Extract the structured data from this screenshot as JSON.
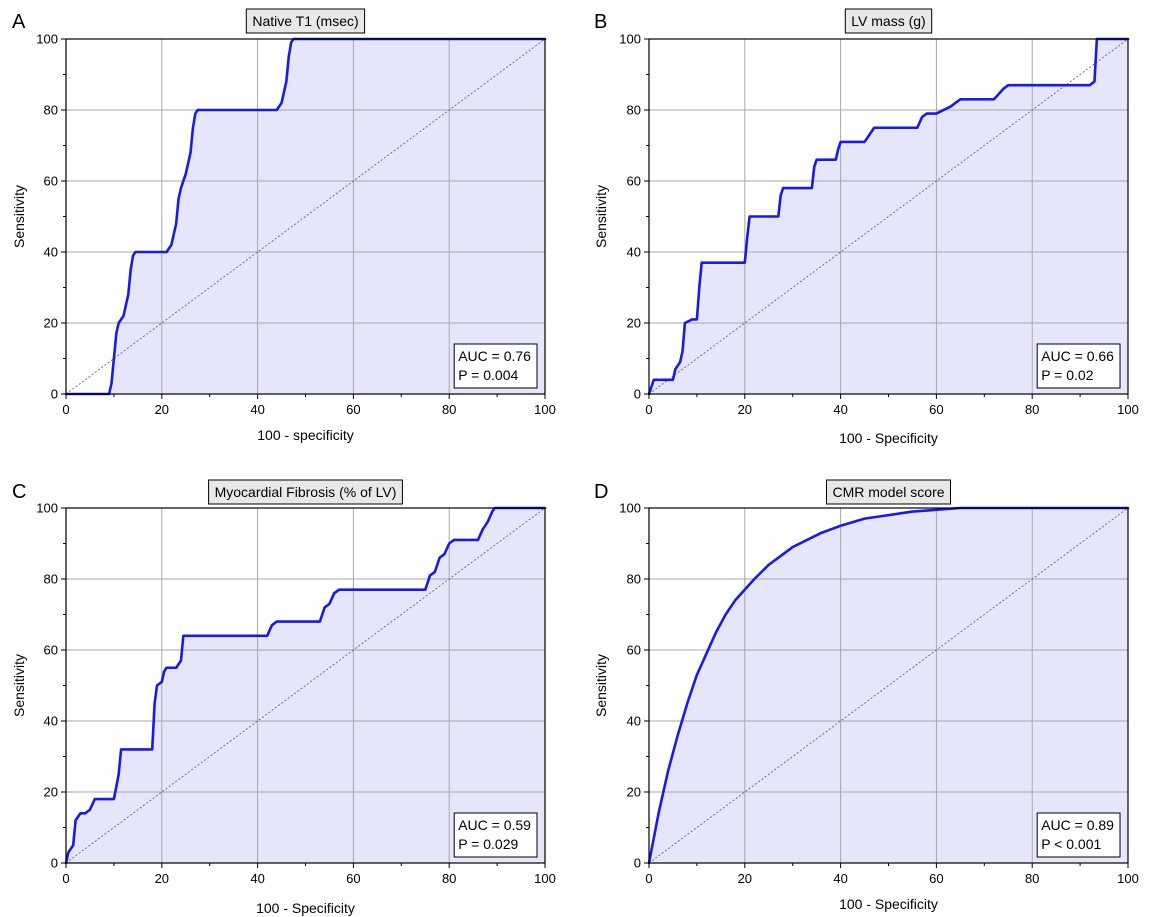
{
  "colors": {
    "curve": "#1a1ae6",
    "fill": "#e6e6fa",
    "grid": "#a8a8a8",
    "title_box": "#e8e8e8",
    "diagonal": "#555555"
  },
  "chart_data": [
    {
      "type": "line",
      "panel_letter": "A",
      "title": "Native T1 (msec)",
      "xlabel": "100 - specificity",
      "ylabel": "Sensitivity",
      "xlim": [
        0,
        100
      ],
      "ylim": [
        0,
        100
      ],
      "x_ticks": [
        "0",
        "20",
        "40",
        "60",
        "80",
        "100"
      ],
      "y_ticks": [
        "0",
        "20",
        "40",
        "60",
        "80",
        "100"
      ],
      "grid": true,
      "diagonal_reference": true,
      "stats_box_position": "bottom-right",
      "stats": [
        "AUC = 0.76",
        "P = 0.004"
      ],
      "x": [
        0,
        9,
        9.5,
        10,
        10.5,
        11,
        12,
        13,
        13.5,
        14,
        14.5,
        15,
        21,
        22,
        23,
        23.5,
        24,
        25,
        26,
        26.5,
        27,
        27.5,
        28,
        44,
        45,
        46,
        46.5,
        47,
        47.5,
        48,
        100
      ],
      "y": [
        0,
        0,
        3,
        10,
        17,
        20,
        22,
        28,
        35,
        39,
        40,
        40,
        40,
        42,
        48,
        55,
        58,
        62,
        68,
        75,
        79,
        80,
        80,
        80,
        82,
        88,
        95,
        99,
        100,
        100,
        100
      ]
    },
    {
      "type": "line",
      "panel_letter": "B",
      "title": "LV mass (g)",
      "xlabel": "100 - Specificity",
      "ylabel": "Sensitivity",
      "xlim": [
        0,
        100
      ],
      "ylim": [
        0,
        100
      ],
      "x_ticks": [
        "0",
        "20",
        "40",
        "60",
        "80",
        "100"
      ],
      "y_ticks": [
        "0",
        "20",
        "40",
        "60",
        "80",
        "100"
      ],
      "grid": true,
      "diagonal_reference": true,
      "stats_box_position": "bottom-right",
      "stats": [
        "AUC = 0.66",
        "P = 0.02"
      ],
      "x": [
        0,
        0.5,
        1,
        2,
        4,
        5,
        5.5,
        6,
        6.5,
        7,
        7.5,
        9,
        10,
        10.5,
        11,
        20,
        20.5,
        21,
        27,
        27.5,
        28,
        34,
        34.5,
        35,
        39,
        39.5,
        40,
        45,
        46,
        47,
        56,
        57,
        58,
        60,
        63,
        65,
        66,
        72,
        74,
        75,
        92,
        93,
        93.5,
        100
      ],
      "y": [
        0,
        2,
        4,
        4,
        4,
        4,
        7,
        8,
        9,
        12,
        20,
        21,
        21,
        30,
        37,
        37,
        44,
        50,
        50,
        56,
        58,
        58,
        64,
        66,
        66,
        69,
        71,
        71,
        73,
        75,
        75,
        78,
        79,
        79,
        81,
        83,
        83,
        83,
        86,
        87,
        87,
        88,
        100,
        100
      ]
    },
    {
      "type": "line",
      "panel_letter": "C",
      "title": "Myocardial Fibrosis (% of LV)",
      "xlabel": "100 - Specificity",
      "ylabel": "Sensitivity",
      "xlim": [
        0,
        100
      ],
      "ylim": [
        0,
        100
      ],
      "x_ticks": [
        "0",
        "20",
        "40",
        "60",
        "80",
        "100"
      ],
      "y_ticks": [
        "0",
        "20",
        "40",
        "60",
        "80",
        "100"
      ],
      "grid": true,
      "diagonal_reference": true,
      "stats_box_position": "bottom-right",
      "stats": [
        "AUC = 0.59",
        "P = 0.029"
      ],
      "x": [
        0,
        0.5,
        1,
        1.5,
        2,
        3,
        4,
        5,
        6,
        6.5,
        10,
        11,
        11.5,
        18,
        18.5,
        19,
        20,
        20.5,
        21,
        23,
        24,
        24.5,
        42,
        43,
        44,
        53,
        54,
        55,
        56,
        57,
        75,
        76,
        77,
        78,
        79,
        80,
        81,
        86,
        87,
        88,
        89,
        89.5,
        100
      ],
      "y": [
        0,
        3,
        4,
        5,
        12,
        14,
        14,
        15,
        18,
        18,
        18,
        25,
        32,
        32,
        45,
        50,
        51,
        54,
        55,
        55,
        57,
        64,
        64,
        67,
        68,
        68,
        72,
        73,
        76,
        77,
        77,
        81,
        82,
        86,
        87,
        90,
        91,
        91,
        94,
        96,
        99,
        100,
        100
      ]
    },
    {
      "type": "line",
      "panel_letter": "D",
      "title": "CMR model score",
      "xlabel": "100 - Specificity",
      "ylabel": "Sensitivity",
      "xlim": [
        0,
        100
      ],
      "ylim": [
        0,
        100
      ],
      "x_ticks": [
        "0",
        "20",
        "40",
        "60",
        "80",
        "100"
      ],
      "y_ticks": [
        "0",
        "20",
        "40",
        "60",
        "80",
        "100"
      ],
      "grid": true,
      "diagonal_reference": true,
      "stats_box_position": "bottom-right",
      "stats": [
        "AUC = 0.89",
        "P < 0.001"
      ],
      "x": [
        0,
        2,
        4,
        6,
        8,
        10,
        12,
        14,
        16,
        18,
        20,
        22,
        25,
        28,
        30,
        33,
        36,
        40,
        45,
        50,
        55,
        60,
        65,
        70,
        80,
        90,
        100
      ],
      "y": [
        0,
        14,
        26,
        36,
        45,
        53,
        59,
        65,
        70,
        74,
        77,
        80,
        84,
        87,
        89,
        91,
        93,
        95,
        97,
        98,
        99,
        99.5,
        100,
        100,
        100,
        100,
        100
      ]
    }
  ]
}
